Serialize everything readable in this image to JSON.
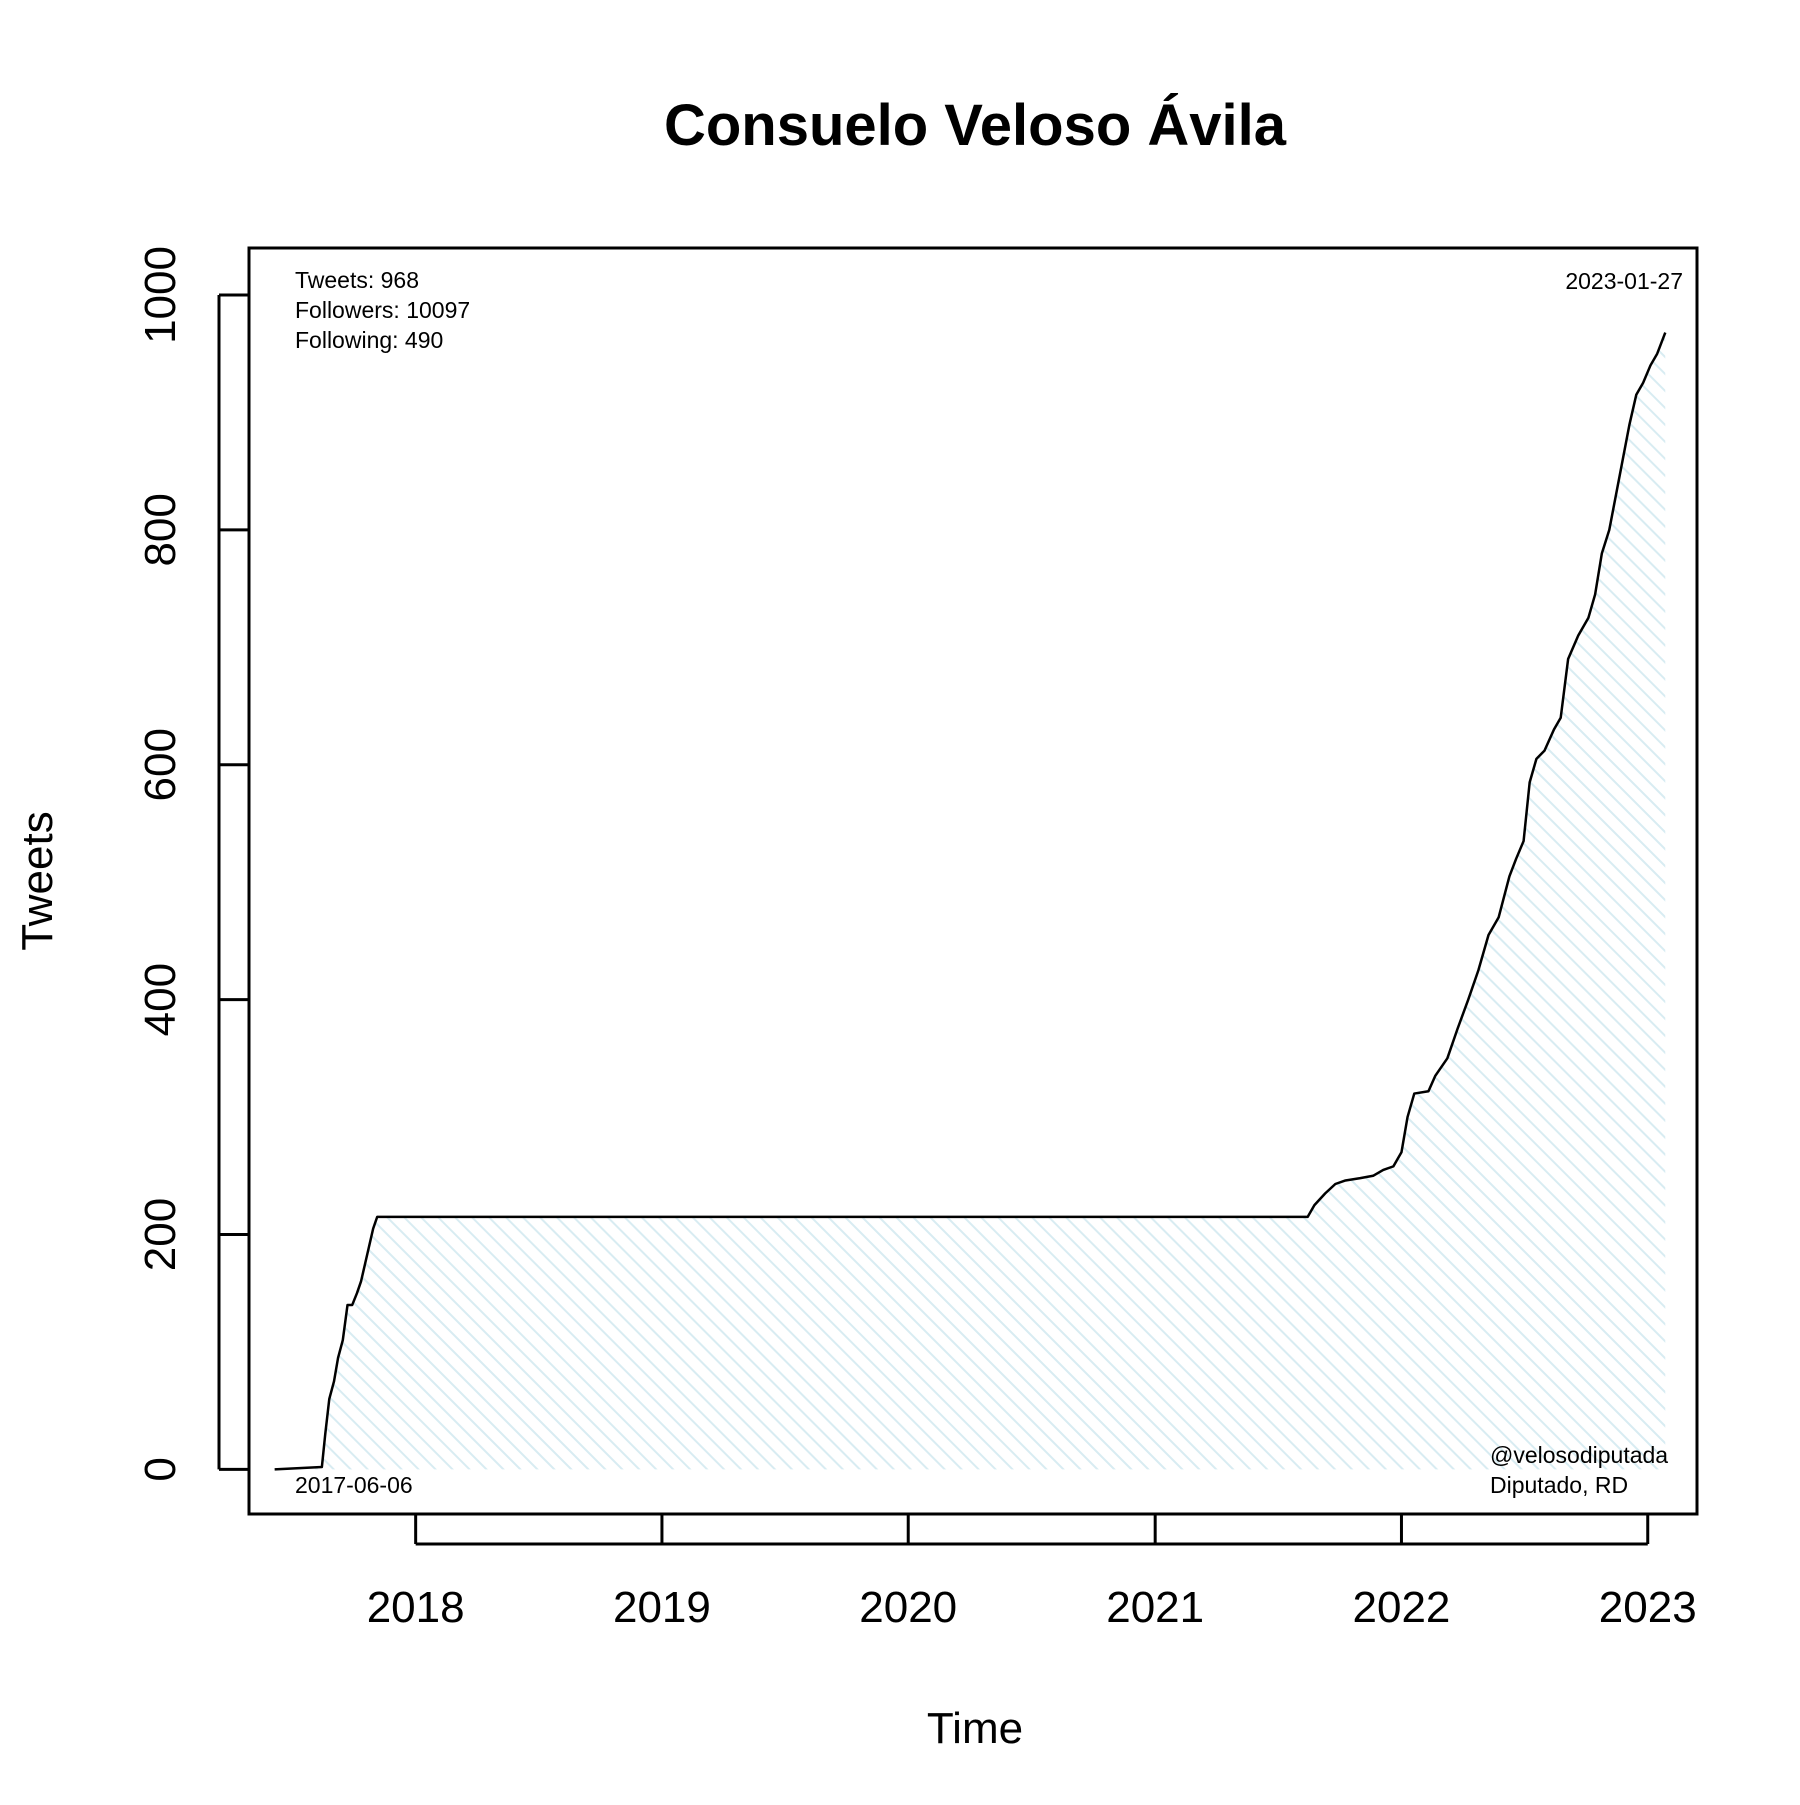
{
  "chart_data": {
    "type": "area",
    "title": "Consuelo Veloso Ávila",
    "xlabel": "Time",
    "ylabel": "Tweets",
    "xlim": [
      "2017-04-29",
      "2023-03-15"
    ],
    "ylim": [
      -38,
      1040
    ],
    "x_ticks": [
      "2018",
      "2019",
      "2020",
      "2021",
      "2022",
      "2023"
    ],
    "x_tick_dates": [
      "2018-01-01",
      "2019-01-01",
      "2020-01-01",
      "2021-01-01",
      "2022-01-01",
      "2023-01-01"
    ],
    "y_ticks": [
      0,
      200,
      400,
      600,
      800,
      1000
    ],
    "grid": false,
    "fill_color": "#e8f3f7",
    "line_color": "#000000",
    "stats": {
      "tweets": "Tweets: 968",
      "followers": "Followers: 10097",
      "following": "Following: 490"
    },
    "start_date_label": "2017-06-06",
    "end_date_label": "2023-01-27",
    "handle": "@velosodiputada",
    "role": "Diputado, RD",
    "series": [
      {
        "x": [
          "2017-06-06",
          "2017-08-15",
          "2017-08-20",
          "2017-08-26",
          "2017-09-02",
          "2017-09-08",
          "2017-09-15",
          "2017-09-22",
          "2017-09-29",
          "2017-10-06",
          "2017-10-12",
          "2017-10-18",
          "2017-10-24",
          "2017-10-30",
          "2017-11-05",
          "2017-11-11",
          "2017-11-15",
          "2018-06-01",
          "2019-06-01",
          "2020-06-01",
          "2021-06-01",
          "2021-08-15",
          "2021-08-25",
          "2021-09-10",
          "2021-09-25",
          "2021-10-10",
          "2021-11-01",
          "2021-11-20",
          "2021-12-05",
          "2021-12-20",
          "2022-01-01",
          "2022-01-10",
          "2022-01-20",
          "2022-02-10",
          "2022-02-20",
          "2022-03-10",
          "2022-03-25",
          "2022-04-10",
          "2022-04-25",
          "2022-05-10",
          "2022-05-25",
          "2022-06-10",
          "2022-06-20",
          "2022-07-01",
          "2022-07-10",
          "2022-07-20",
          "2022-08-01",
          "2022-08-15",
          "2022-08-25",
          "2022-09-05",
          "2022-09-20",
          "2022-10-05",
          "2022-10-15",
          "2022-10-25",
          "2022-11-05",
          "2022-11-15",
          "2022-11-25",
          "2022-12-05",
          "2022-12-15",
          "2022-12-25",
          "2023-01-05",
          "2023-01-15",
          "2023-01-27"
        ],
        "y": [
          0,
          2,
          30,
          60,
          75,
          95,
          110,
          140,
          140,
          150,
          160,
          175,
          190,
          205,
          215,
          215,
          215,
          215,
          215,
          215,
          215,
          215,
          225,
          235,
          243,
          246,
          248,
          250,
          255,
          258,
          270,
          300,
          320,
          322,
          335,
          350,
          375,
          400,
          425,
          455,
          470,
          505,
          520,
          535,
          585,
          605,
          612,
          630,
          640,
          690,
          710,
          725,
          745,
          780,
          800,
          830,
          860,
          890,
          915,
          925,
          940,
          950,
          968
        ]
      }
    ]
  }
}
